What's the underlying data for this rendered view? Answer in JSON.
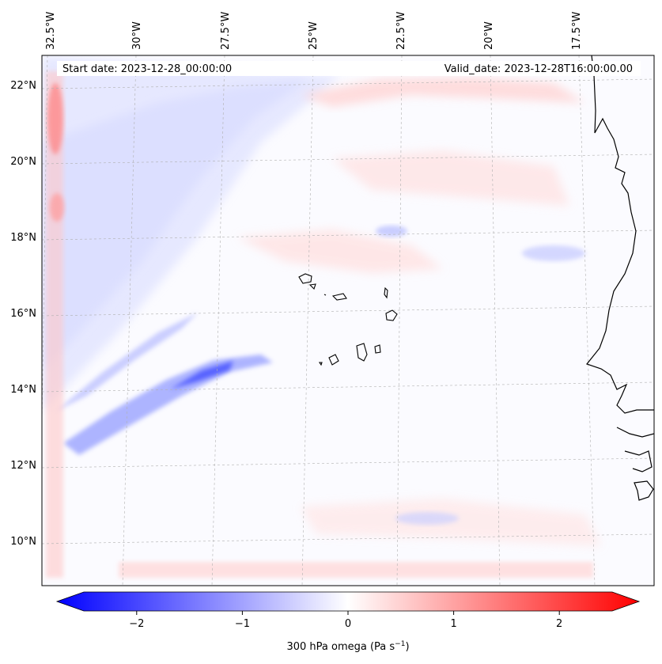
{
  "map": {
    "start_date_text": "Start date: 2023-12-28_00:00:00",
    "valid_date_text": "Valid_date: 2023-12-28T16:00:00.00",
    "lon_labels": [
      "32.5°W",
      "30°W",
      "27.5°W",
      "25°W",
      "22.5°W",
      "20°W",
      "17.5°W"
    ],
    "lat_labels": [
      "22°N",
      "20°N",
      "18°N",
      "16°N",
      "14°N",
      "12°N",
      "10°N"
    ],
    "colors": {
      "negative": "#0000ff",
      "zero": "#ffffff",
      "positive": "#ff0000",
      "coast": "#000000",
      "grid": "#b0b0b0"
    }
  },
  "colorbar": {
    "label": "300 hPa omega (Pa s",
    "label_exp": "−1",
    "label_end": ")",
    "range": [
      -2.6,
      2.6
    ],
    "ticks": [
      {
        "value": -2,
        "label": "−2"
      },
      {
        "value": -1,
        "label": "−1"
      },
      {
        "value": 0,
        "label": "0"
      },
      {
        "value": 1,
        "label": "1"
      },
      {
        "value": 2,
        "label": "2"
      }
    ]
  }
}
